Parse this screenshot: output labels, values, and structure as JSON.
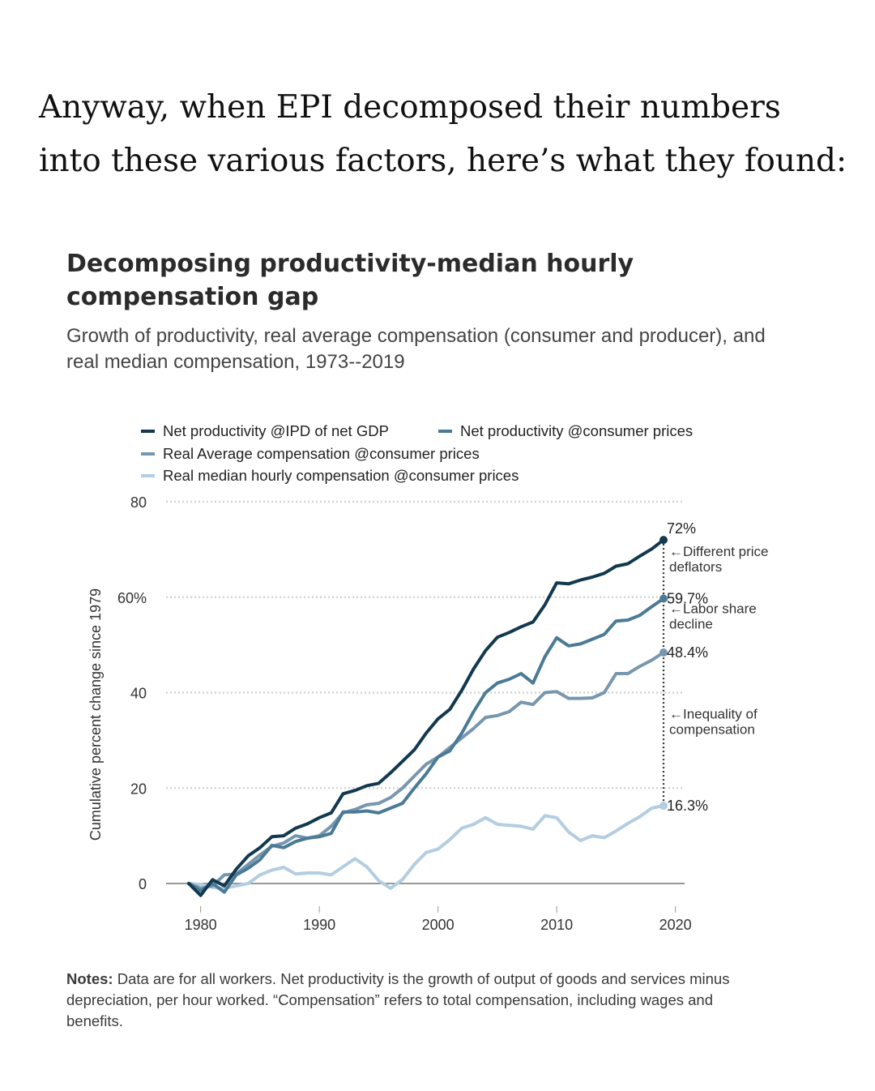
{
  "intro": {
    "line1": "Anyway, when EPI decomposed their numbers",
    "line2": "into these various factors, here’s what they found:"
  },
  "chart_data": {
    "type": "line",
    "title": "Decomposing productivity-median hourly compensation gap",
    "subtitle": "Growth of productivity, real average compensation (consumer and producer), and real median compensation, 1973--2019",
    "xlabel": "",
    "ylabel": "Cumulative percent change since 1979",
    "xlim": [
      1978,
      2021
    ],
    "ylim": [
      0,
      80
    ],
    "x_ticks": [
      1980,
      1990,
      2000,
      2010,
      2020
    ],
    "y_ticks": [
      {
        "value": 0,
        "label": "0"
      },
      {
        "value": 20,
        "label": "20"
      },
      {
        "value": 40,
        "label": "40"
      },
      {
        "value": 60,
        "label": "60%"
      },
      {
        "value": 80,
        "label": "80"
      }
    ],
    "grid": true,
    "legend_position": "top",
    "x": [
      1979,
      1980,
      1981,
      1982,
      1983,
      1984,
      1985,
      1986,
      1987,
      1988,
      1989,
      1990,
      1991,
      1992,
      1993,
      1994,
      1995,
      1996,
      1997,
      1998,
      1999,
      2000,
      2001,
      2002,
      2003,
      2004,
      2005,
      2006,
      2007,
      2008,
      2009,
      2010,
      2011,
      2012,
      2013,
      2014,
      2015,
      2016,
      2017,
      2018,
      2019
    ],
    "series": [
      {
        "name": "Net productivity @IPD of net GDP",
        "color": "#12394f",
        "values": [
          0,
          -2.5,
          0.8,
          -0.5,
          3,
          5.8,
          7.5,
          9.8,
          10,
          11.6,
          12.5,
          13.8,
          14.8,
          18.8,
          19.5,
          20.5,
          21,
          23.2,
          25.6,
          28,
          31.5,
          34.5,
          36.5,
          40.5,
          45,
          48.8,
          51.6,
          52.6,
          53.8,
          54.8,
          58.4,
          63,
          62.8,
          63.6,
          64.2,
          65,
          66.5,
          67,
          68.6,
          70.1,
          72
        ]
      },
      {
        "name": "Net productivity @consumer prices",
        "color": "#4b7a95",
        "values": [
          0,
          -1.5,
          0,
          -1.8,
          1.8,
          3.2,
          5,
          8,
          7.5,
          8.8,
          9.5,
          9.8,
          10.5,
          15,
          15,
          15.2,
          14.8,
          15.8,
          16.8,
          20,
          23,
          26.5,
          27.8,
          31.5,
          36,
          40,
          42,
          42.8,
          44,
          42,
          47.5,
          51.5,
          49.8,
          50.2,
          51.2,
          52.2,
          55,
          55.2,
          56.2,
          58,
          59.7
        ]
      },
      {
        "name": "Real Average compensation @consumer prices",
        "color": "#7797ae",
        "values": [
          0,
          -1,
          -0.5,
          1.8,
          2,
          4,
          6,
          7.8,
          8.5,
          10,
          9.5,
          10,
          12,
          14.8,
          15.5,
          16.5,
          16.8,
          18,
          20,
          22.5,
          25,
          26.5,
          28.5,
          30.5,
          32.5,
          34.8,
          35.2,
          36,
          38,
          37.5,
          40,
          40.2,
          38.8,
          38.8,
          38.9,
          40,
          44,
          44,
          45.5,
          46.8,
          48.4
        ]
      },
      {
        "name": "Real median hourly compensation @consumer prices",
        "color": "#b3cde1",
        "values": [
          0,
          -0.2,
          -0.8,
          -1,
          -0.5,
          0,
          1.8,
          2.8,
          3.4,
          2,
          2.2,
          2.2,
          1.8,
          3.5,
          5.2,
          3.5,
          0.6,
          -1,
          0.8,
          4,
          6.5,
          7.2,
          9.2,
          11.6,
          12.4,
          13.8,
          12.4,
          12.2,
          12,
          11.4,
          14.2,
          13.8,
          10.8,
          9,
          10,
          9.6,
          11,
          12.6,
          14,
          15.8,
          16.3
        ]
      }
    ],
    "end_labels": [
      "72%",
      "59.7%",
      "48.4%",
      "16.3%"
    ],
    "annotations": [
      {
        "line1": "←Different price",
        "line2": "deflators"
      },
      {
        "line1": "←Labor share",
        "line2": "decline"
      },
      {
        "line1": "←Inequality of",
        "line2": "compensation"
      }
    ]
  },
  "notes": {
    "label": "Notes:",
    "line1": " Data are for all workers. Net productivity is the growth of output of goods and services minus",
    "line2": "depreciation, per hour worked. “Compensation” refers to total compensation, including wages and",
    "line3": "benefits."
  }
}
